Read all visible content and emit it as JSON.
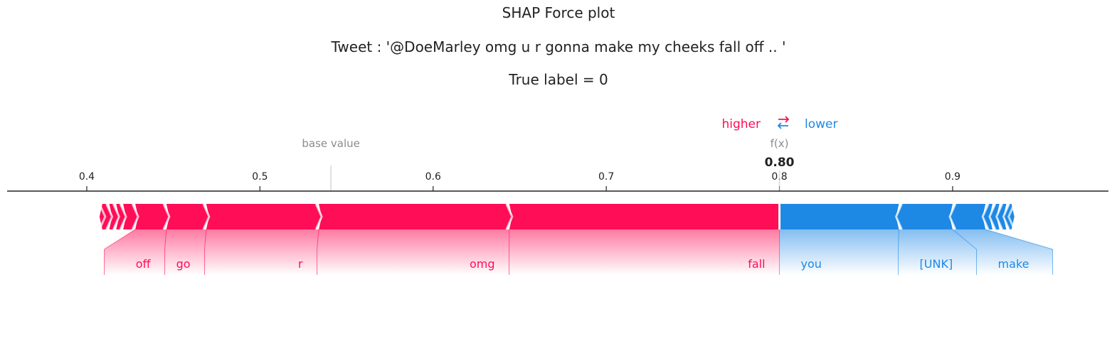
{
  "titles": {
    "main": "SHAP Force plot",
    "tweet": "Tweet : '@DoeMarley omg u r gonna make my cheeks fall off .. '",
    "label": "True label = 0"
  },
  "legend": {
    "higher": "higher",
    "lower": "lower",
    "arrows": "⇄"
  },
  "colors": {
    "positive": "#ff0d57",
    "negative": "#1e88e5",
    "axis": "#222222",
    "muted": "#8c8c8c"
  },
  "chart_data": {
    "type": "force",
    "title": "SHAP Force plot",
    "base_value": 0.541,
    "base_value_label": "base value",
    "fx": 0.8,
    "fx_label": "f(x)",
    "fx_text": "0.80",
    "xlim": [
      0.354,
      0.99
    ],
    "ticks": [
      0.4,
      0.5,
      0.6,
      0.7,
      0.8,
      0.9
    ],
    "tick_labels": [
      "0.4",
      "0.5",
      "0.6",
      "0.7",
      "0.8",
      "0.9"
    ],
    "positive": [
      {
        "feature": "fall",
        "value": 0.156
      },
      {
        "feature": "omg",
        "value": 0.11
      },
      {
        "feature": "",
        "value": 0.0
      },
      {
        "feature": "r",
        "value": 0.065
      },
      {
        "feature": "go",
        "value": 0.023
      },
      {
        "feature": "off",
        "value": 0.018
      },
      {
        "feature": "",
        "value": 0.007
      },
      {
        "feature": "",
        "value": 0.004
      },
      {
        "feature": "",
        "value": 0.004
      },
      {
        "feature": "",
        "value": 0.004
      }
    ],
    "negative": [
      {
        "feature": "you",
        "value": 0.069
      },
      {
        "feature": "[UNK]",
        "value": 0.031
      },
      {
        "feature": "make",
        "value": 0.019
      },
      {
        "feature": "",
        "value": 0.004
      },
      {
        "feature": "",
        "value": 0.004
      },
      {
        "feature": "",
        "value": 0.004
      },
      {
        "feature": "",
        "value": 0.003
      }
    ]
  }
}
